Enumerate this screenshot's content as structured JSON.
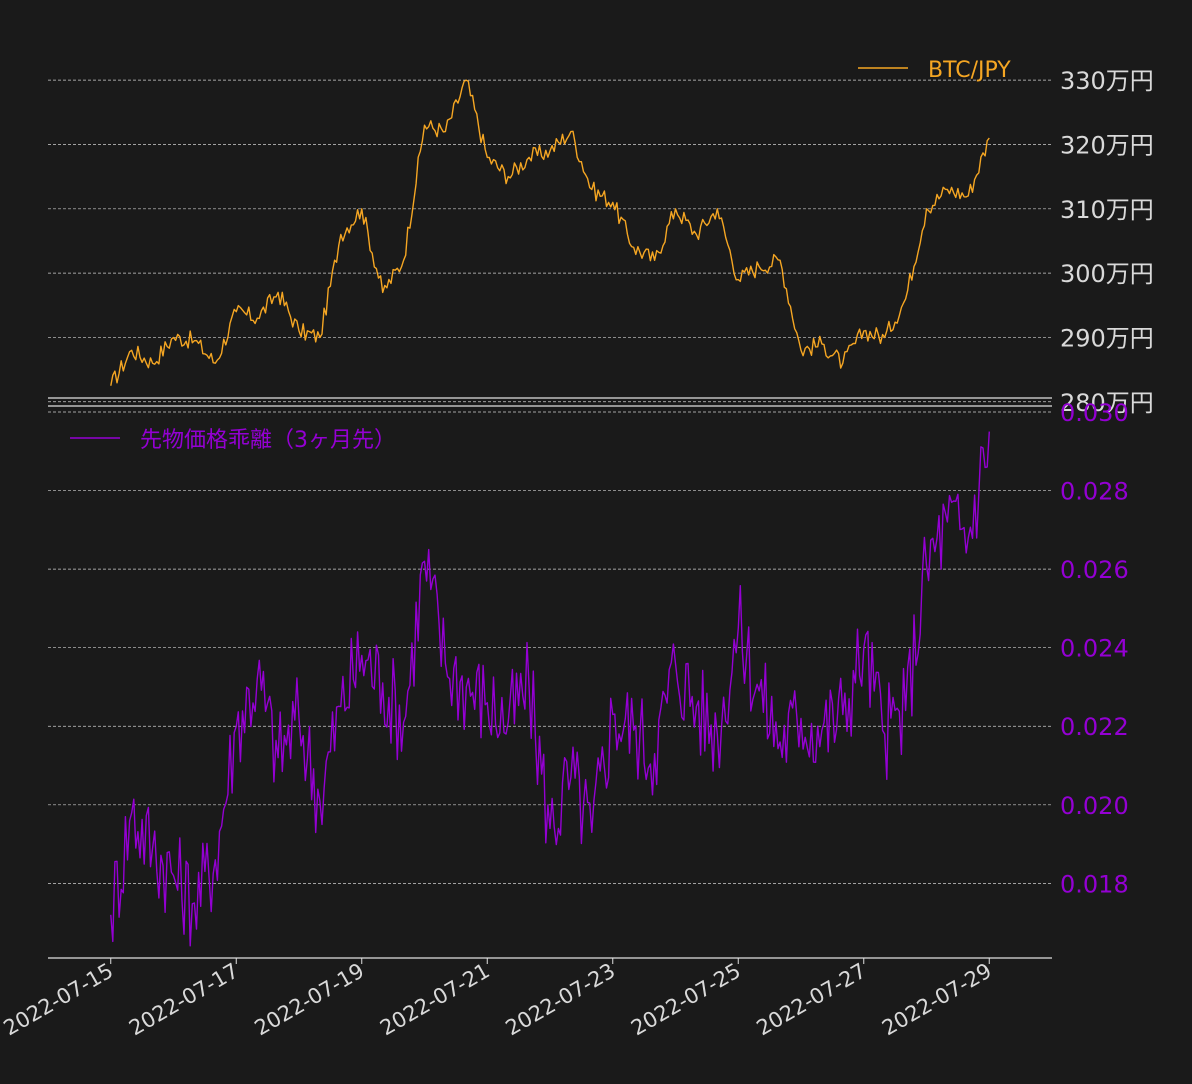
{
  "chart_data": [
    {
      "type": "line",
      "series": [
        {
          "name": "BTC/JPY",
          "color": "#f5a623",
          "x": [
            "2022-07-15",
            "2022-07-15",
            "2022-07-15",
            "2022-07-16",
            "2022-07-16",
            "2022-07-16",
            "2022-07-17",
            "2022-07-17",
            "2022-07-17",
            "2022-07-18",
            "2022-07-18",
            "2022-07-18",
            "2022-07-19",
            "2022-07-19",
            "2022-07-19",
            "2022-07-20",
            "2022-07-20",
            "2022-07-20",
            "2022-07-21",
            "2022-07-21",
            "2022-07-21",
            "2022-07-22",
            "2022-07-22",
            "2022-07-22",
            "2022-07-23",
            "2022-07-23",
            "2022-07-23",
            "2022-07-24",
            "2022-07-24",
            "2022-07-24",
            "2022-07-25",
            "2022-07-25",
            "2022-07-25",
            "2022-07-26",
            "2022-07-26",
            "2022-07-26",
            "2022-07-27",
            "2022-07-27",
            "2022-07-27",
            "2022-07-28",
            "2022-07-28",
            "2022-07-28",
            "2022-07-29"
          ],
          "values": [
            282.5,
            288,
            286,
            290,
            289.5,
            286,
            294,
            293,
            297,
            291,
            290,
            306,
            310,
            297,
            302,
            323,
            322,
            330,
            318,
            315,
            318,
            319,
            322,
            313,
            311,
            304,
            302,
            310,
            306,
            310,
            299,
            301,
            302,
            288,
            289,
            286,
            291,
            290,
            296,
            310,
            313,
            312,
            321
          ]
        }
      ],
      "legend": "top-right",
      "y_ticks": [
        "280万円",
        "290万円",
        "300万円",
        "310万円",
        "320万円",
        "330万円"
      ],
      "ylim": [
        279.5,
        335
      ],
      "grid": true
    },
    {
      "type": "line",
      "series": [
        {
          "name": "先物価格乖離（3ヶ月先）",
          "color": "#9400d3",
          "x": [
            "2022-07-15",
            "2022-07-15",
            "2022-07-15",
            "2022-07-16",
            "2022-07-16",
            "2022-07-16",
            "2022-07-17",
            "2022-07-17",
            "2022-07-17",
            "2022-07-18",
            "2022-07-18",
            "2022-07-18",
            "2022-07-19",
            "2022-07-19",
            "2022-07-19",
            "2022-07-20",
            "2022-07-20",
            "2022-07-20",
            "2022-07-21",
            "2022-07-21",
            "2022-07-21",
            "2022-07-22",
            "2022-07-22",
            "2022-07-22",
            "2022-07-23",
            "2022-07-23",
            "2022-07-23",
            "2022-07-24",
            "2022-07-24",
            "2022-07-24",
            "2022-07-25",
            "2022-07-25",
            "2022-07-25",
            "2022-07-26",
            "2022-07-26",
            "2022-07-26",
            "2022-07-27",
            "2022-07-27",
            "2022-07-27",
            "2022-07-28",
            "2022-07-28",
            "2022-07-28",
            "2022-07-29"
          ],
          "values": [
            0.0172,
            0.0198,
            0.0189,
            0.0182,
            0.0175,
            0.0186,
            0.022,
            0.0232,
            0.0212,
            0.0222,
            0.0201,
            0.0225,
            0.0238,
            0.0231,
            0.0221,
            0.0262,
            0.0236,
            0.023,
            0.0226,
            0.0221,
            0.023,
            0.0194,
            0.0207,
            0.0193,
            0.0223,
            0.0219,
            0.0213,
            0.0236,
            0.0225,
            0.0218,
            0.0245,
            0.0229,
            0.0216,
            0.0222,
            0.0219,
            0.0223,
            0.024,
            0.0218,
            0.0224,
            0.0261,
            0.0272,
            0.0268,
            0.0295
          ]
        }
      ],
      "legend": "top-left",
      "y_ticks": [
        "0.018",
        "0.020",
        "0.022",
        "0.024",
        "0.026",
        "0.028",
        "0.030"
      ],
      "ylim": [
        0.0161,
        0.03
      ],
      "grid": true
    }
  ],
  "x_axis": {
    "ticks": [
      "2022-07-15",
      "2022-07-17",
      "2022-07-19",
      "2022-07-21",
      "2022-07-23",
      "2022-07-25",
      "2022-07-27",
      "2022-07-29"
    ],
    "xlim": [
      "2022-07-14",
      "2022-07-30"
    ]
  },
  "colors": {
    "background": "#1a1a1a",
    "text": "#d9d9d9",
    "grid": "#cfcfcf"
  }
}
